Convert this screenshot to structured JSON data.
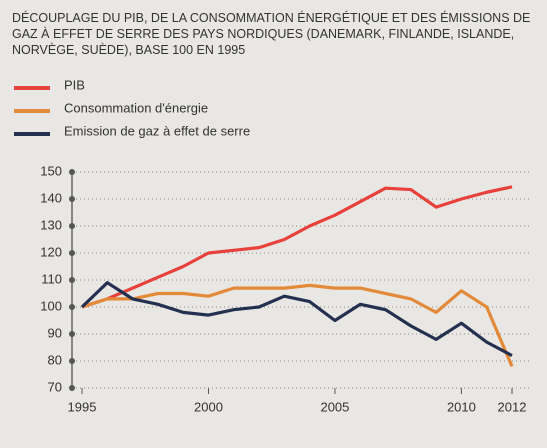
{
  "chart_data": {
    "type": "line",
    "title": "DÉCOUPLAGE DU PIB, DE LA CONSOMMATION ÉNERGÉTIQUE ET DES ÉMISSIONS DE GAZ À EFFET DE SERRE DES PAYS NORDIQUES (DANEMARK, FINLANDE, ISLANDE, NORVÈGE, SUÈDE), BASE 100 EN 1995",
    "x": [
      1995,
      1996,
      1997,
      1998,
      1999,
      2000,
      2001,
      2002,
      2003,
      2004,
      2005,
      2006,
      2007,
      2008,
      2009,
      2010,
      2011,
      2012
    ],
    "series": [
      {
        "name": "PIB",
        "color": "#e8403a",
        "values": [
          100,
          103,
          107,
          111,
          115,
          120,
          121,
          122,
          125,
          130,
          134,
          139,
          144,
          143.5,
          137,
          140,
          142.5,
          144.5
        ]
      },
      {
        "name": "Consommation d'énergie",
        "color": "#e38a3a",
        "values": [
          100,
          103,
          103,
          105,
          105,
          104,
          107,
          107,
          107,
          108,
          107,
          107,
          105,
          103,
          98,
          106,
          100,
          78
        ]
      },
      {
        "name": "Emission de gaz à effet de serre",
        "color": "#24304f",
        "values": [
          100,
          109,
          103,
          101,
          98,
          97,
          99,
          100,
          104,
          102,
          95,
          101,
          99,
          93,
          88,
          94,
          87,
          82
        ]
      }
    ],
    "xlim": [
      1995,
      2012
    ],
    "xticks": [
      1995,
      2000,
      2005,
      2010,
      2012
    ],
    "ylim": [
      70,
      150
    ],
    "yticks": [
      70,
      80,
      90,
      100,
      110,
      120,
      130,
      140,
      150
    ],
    "grid": true,
    "legend": "top-left"
  }
}
